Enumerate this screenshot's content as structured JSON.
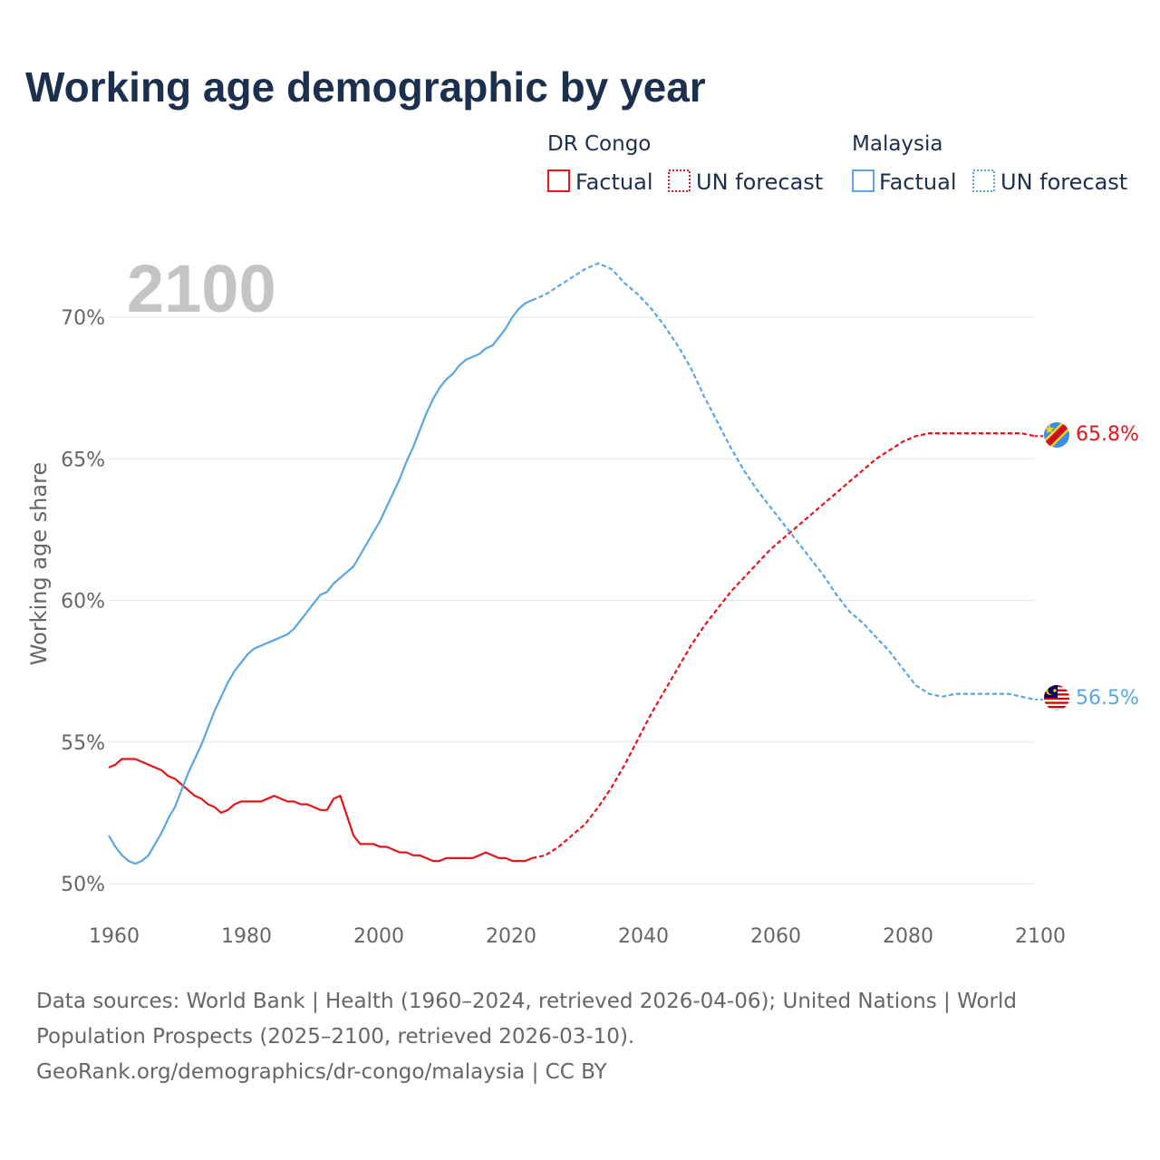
{
  "chart_data": {
    "type": "line",
    "title": "Working age demographic by year",
    "year_label": "2100",
    "ylabel": "Working age share",
    "xlabel": "",
    "xlim": [
      1960,
      2100
    ],
    "ylim": [
      50,
      72
    ],
    "x_ticks": [
      "1960",
      "1980",
      "2000",
      "2020",
      "2040",
      "2060",
      "2080",
      "2100"
    ],
    "y_ticks": [
      "50%",
      "55%",
      "60%",
      "65%",
      "70%"
    ],
    "legend": {
      "groups": [
        {
          "name": "DR Congo",
          "factual_label": "Factual",
          "forecast_label": "UN forecast",
          "color": "#e8141b"
        },
        {
          "name": "Malaysia",
          "factual_label": "Factual",
          "forecast_label": "UN forecast",
          "color": "#5aa5e6"
        }
      ]
    },
    "series": [
      {
        "name": "DR Congo",
        "color": "#e8141b",
        "end_label": "65.8%",
        "factual": {
          "x": [
            1960,
            1961,
            1962,
            1963,
            1964,
            1965,
            1966,
            1967,
            1968,
            1969,
            1970,
            1971,
            1972,
            1973,
            1974,
            1975,
            1976,
            1977,
            1978,
            1979,
            1980,
            1981,
            1982,
            1983,
            1984,
            1985,
            1986,
            1987,
            1988,
            1989,
            1990,
            1991,
            1992,
            1993,
            1994,
            1995,
            1996,
            1997,
            1998,
            1999,
            2000,
            2001,
            2002,
            2003,
            2004,
            2005,
            2006,
            2007,
            2008,
            2009,
            2010,
            2011,
            2012,
            2013,
            2014,
            2015,
            2016,
            2017,
            2018,
            2019,
            2020,
            2021,
            2022,
            2023,
            2024
          ],
          "y": [
            54.1,
            54.2,
            54.4,
            54.4,
            54.4,
            54.3,
            54.2,
            54.1,
            54.0,
            53.8,
            53.7,
            53.5,
            53.3,
            53.1,
            53.0,
            52.8,
            52.7,
            52.5,
            52.6,
            52.8,
            52.9,
            52.9,
            52.9,
            52.9,
            53.0,
            53.1,
            53.0,
            52.9,
            52.9,
            52.8,
            52.8,
            52.7,
            52.6,
            52.6,
            53.0,
            53.1,
            52.4,
            51.7,
            51.4,
            51.4,
            51.4,
            51.3,
            51.3,
            51.2,
            51.1,
            51.1,
            51.0,
            51.0,
            50.9,
            50.8,
            50.8,
            50.9,
            50.9,
            50.9,
            50.9,
            50.9,
            51.0,
            51.1,
            51.0,
            50.9,
            50.9,
            50.8,
            50.8,
            50.8,
            50.9
          ]
        },
        "forecast": {
          "x": [
            2024,
            2026,
            2028,
            2030,
            2032,
            2034,
            2036,
            2038,
            2040,
            2042,
            2044,
            2046,
            2048,
            2050,
            2052,
            2054,
            2056,
            2058,
            2060,
            2062,
            2064,
            2066,
            2068,
            2070,
            2072,
            2074,
            2076,
            2078,
            2080,
            2082,
            2084,
            2086,
            2088,
            2090,
            2092,
            2094,
            2096,
            2098,
            2100
          ],
          "y": [
            50.9,
            51.0,
            51.3,
            51.7,
            52.1,
            52.7,
            53.4,
            54.2,
            55.1,
            56.0,
            56.8,
            57.6,
            58.4,
            59.1,
            59.7,
            60.3,
            60.8,
            61.3,
            61.8,
            62.2,
            62.6,
            63.0,
            63.4,
            63.8,
            64.2,
            64.6,
            65.0,
            65.3,
            65.6,
            65.8,
            65.9,
            65.9,
            65.9,
            65.9,
            65.9,
            65.9,
            65.9,
            65.9,
            65.8
          ]
        }
      },
      {
        "name": "Malaysia",
        "color": "#5aa5e6",
        "end_label": "56.5%",
        "factual": {
          "x": [
            1960,
            1961,
            1962,
            1963,
            1964,
            1965,
            1966,
            1967,
            1968,
            1969,
            1970,
            1971,
            1972,
            1973,
            1974,
            1975,
            1976,
            1977,
            1978,
            1979,
            1980,
            1981,
            1982,
            1983,
            1984,
            1985,
            1986,
            1987,
            1988,
            1989,
            1990,
            1991,
            1992,
            1993,
            1994,
            1995,
            1996,
            1997,
            1998,
            1999,
            2000,
            2001,
            2002,
            2003,
            2004,
            2005,
            2006,
            2007,
            2008,
            2009,
            2010,
            2011,
            2012,
            2013,
            2014,
            2015,
            2016,
            2017,
            2018,
            2019,
            2020,
            2021,
            2022,
            2023,
            2024
          ],
          "y": [
            51.7,
            51.3,
            51.0,
            50.8,
            50.7,
            50.8,
            51.0,
            51.4,
            51.8,
            52.3,
            52.7,
            53.3,
            53.9,
            54.4,
            54.9,
            55.5,
            56.1,
            56.6,
            57.1,
            57.5,
            57.8,
            58.1,
            58.3,
            58.4,
            58.5,
            58.6,
            58.7,
            58.8,
            59.0,
            59.3,
            59.6,
            59.9,
            60.2,
            60.3,
            60.6,
            60.8,
            61.0,
            61.2,
            61.6,
            62.0,
            62.4,
            62.8,
            63.3,
            63.8,
            64.3,
            64.9,
            65.4,
            66.0,
            66.6,
            67.1,
            67.5,
            67.8,
            68.0,
            68.3,
            68.5,
            68.6,
            68.7,
            68.9,
            69.0,
            69.3,
            69.6,
            70.0,
            70.3,
            70.5,
            70.6
          ]
        },
        "forecast": {
          "x": [
            2024,
            2026,
            2028,
            2030,
            2032,
            2034,
            2036,
            2038,
            2040,
            2042,
            2044,
            2046,
            2048,
            2050,
            2052,
            2054,
            2056,
            2058,
            2060,
            2062,
            2064,
            2066,
            2068,
            2070,
            2072,
            2074,
            2076,
            2078,
            2080,
            2082,
            2084,
            2086,
            2088,
            2090,
            2092,
            2094,
            2096,
            2098,
            2100
          ],
          "y": [
            70.6,
            70.8,
            71.1,
            71.4,
            71.7,
            71.9,
            71.7,
            71.2,
            70.8,
            70.3,
            69.7,
            69.0,
            68.2,
            67.2,
            66.3,
            65.4,
            64.6,
            63.9,
            63.3,
            62.7,
            62.1,
            61.5,
            60.9,
            60.2,
            59.6,
            59.2,
            58.7,
            58.2,
            57.6,
            57.0,
            56.7,
            56.6,
            56.7,
            56.7,
            56.7,
            56.7,
            56.7,
            56.6,
            56.5
          ]
        }
      }
    ],
    "sources": [
      "Data sources: World Bank | Health (1960–2024, retrieved 2026-04-06); United Nations | World",
      "Population Prospects (2025–2100, retrieved 2026-03-10).",
      "GeoRank.org/demographics/dr-congo/malaysia | CC BY"
    ]
  }
}
